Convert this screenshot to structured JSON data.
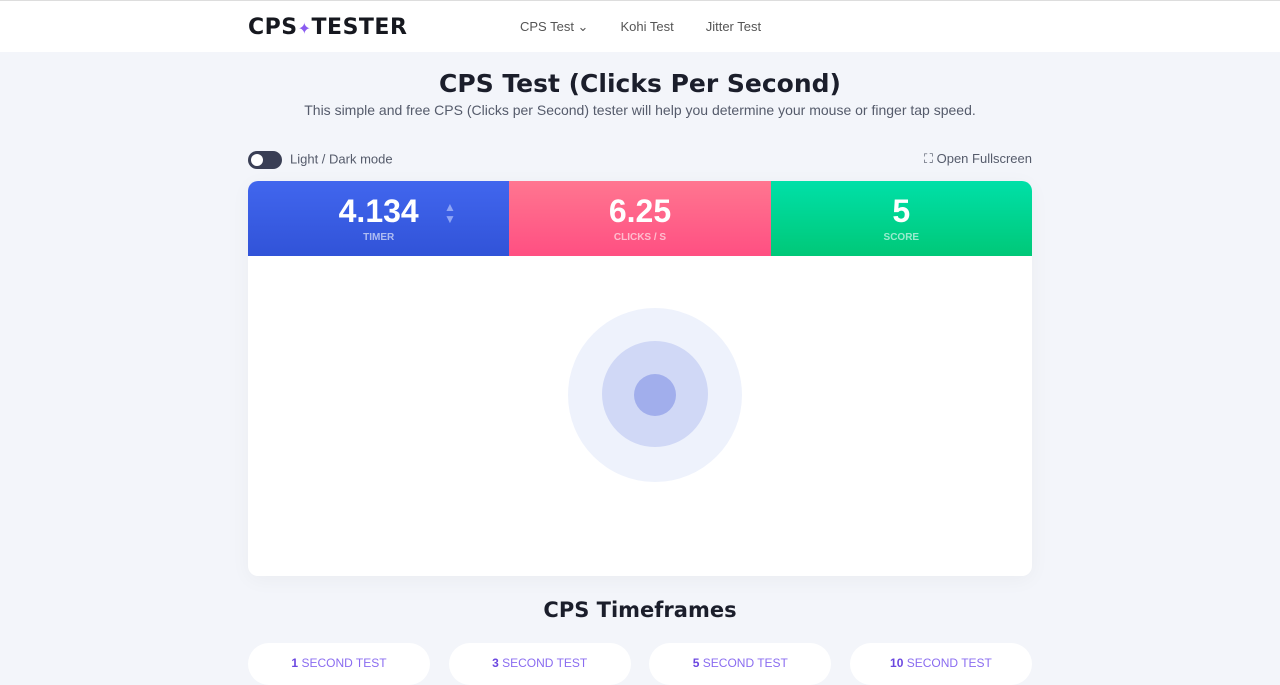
{
  "nav": {
    "logo": "CPS TESTER",
    "links": [
      "CPS Test ⌄",
      "Kohi Test",
      "Jitter Test"
    ]
  },
  "title": "CPS Test (Clicks Per Second)",
  "subtitle": "This simple and free CPS (Clicks per Second) tester will help you determine your mouse or finger tap speed.",
  "toggle_label": "Light / Dark mode",
  "fullscreen_label": "Open Fullscreen",
  "stats": [
    {
      "value": "4.134",
      "label": "TIMER"
    },
    {
      "value": "6.25",
      "label": "CLICKS / S"
    },
    {
      "value": "5",
      "label": "SCORE"
    }
  ],
  "timeframes_title": "CPS Timeframes",
  "timeframes": [
    {
      "n": "1",
      "t": "SECOND TEST"
    },
    {
      "n": "3",
      "t": "SECOND TEST"
    },
    {
      "n": "5",
      "t": "SECOND TEST"
    },
    {
      "n": "10",
      "t": "SECOND TEST"
    }
  ]
}
